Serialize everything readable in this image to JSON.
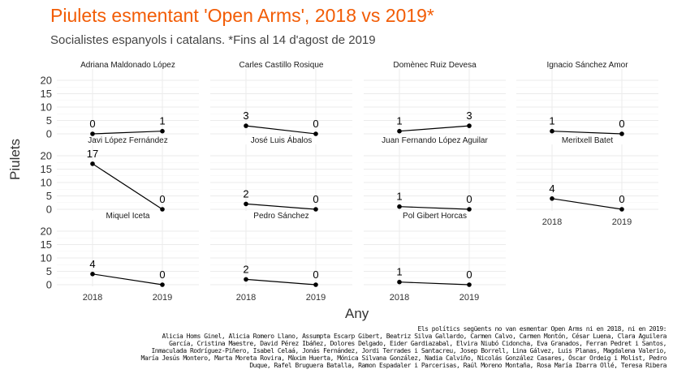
{
  "title": "Piulets esmentant 'Open Arms', 2018 vs 2019*",
  "subtitle": "Socialistes espanyols i catalans. *Fins al 14 d'agost de 2019",
  "caption_lines": [
    "Els polítics següents no van esmentar Open Arms ni en 2018, ni en 2019:",
    "Alicia Homs Ginel, Alicia Romero Llano, Assumpta Escarp Gibert, Beatriz Silva Gallardo, Carmen Calvo, Carmen Montón, César Luena, Clara Aguilera",
    "García, Cristina Maestre, David Pérez Ibáñez, Dolores Delgado, Eider Gardiazabal, Elvira Niubó Cidoncha, Eva Granados, Ferran Pedret i Santos,",
    "Inmaculada Rodríguez-Piñero, Isabel Celaá, Jonás Fernández, Jordi Terrades i Santacreu, Josep Borrell, Lina Gálvez, Luis Planas, Magdalena Valerio,",
    "María Jesús Montero, Marta Moreta Rovira, Màxim Huerta, Mónica Silvana González, Nadia Calviño, Nicolás González Casares, Òscar Ordeig i Molist, Pedro",
    "Duque, Rafel Bruguera Batalla, Ramon Espadaler i Parcerisas, Raúl Moreno Montaña, Rosa María Ibarra Ollé, Teresa Ribera"
  ],
  "colors": {
    "title": "#f25c05",
    "line": "#000000",
    "grid": "#ebebeb"
  },
  "chart_data": {
    "type": "line",
    "facet": "small-multiples",
    "xlabel": "Any",
    "ylabel": "Piulets",
    "x": [
      "2018",
      "2019"
    ],
    "ylim": [
      0,
      20
    ],
    "yticks": [
      0,
      5,
      10,
      15,
      20
    ],
    "grid": true,
    "panels": [
      {
        "name": "Adriana Maldonado López",
        "values": [
          0,
          1
        ]
      },
      {
        "name": "Carles Castillo Rosique",
        "values": [
          3,
          0
        ]
      },
      {
        "name": "Domènec Ruiz Devesa",
        "values": [
          1,
          3
        ]
      },
      {
        "name": "Ignacio Sánchez Amor",
        "values": [
          1,
          0
        ]
      },
      {
        "name": "Javi López Fernández",
        "values": [
          17,
          0
        ]
      },
      {
        "name": "José Luis Ábalos",
        "values": [
          2,
          0
        ]
      },
      {
        "name": "Juan Fernando López Aguilar",
        "values": [
          1,
          0
        ]
      },
      {
        "name": "Meritxell Batet",
        "values": [
          4,
          0
        ]
      },
      {
        "name": "Miquel Iceta",
        "values": [
          4,
          0
        ]
      },
      {
        "name": "Pedro Sánchez",
        "values": [
          2,
          0
        ]
      },
      {
        "name": "Pol Gibert Horcas",
        "values": [
          1,
          0
        ]
      }
    ]
  }
}
